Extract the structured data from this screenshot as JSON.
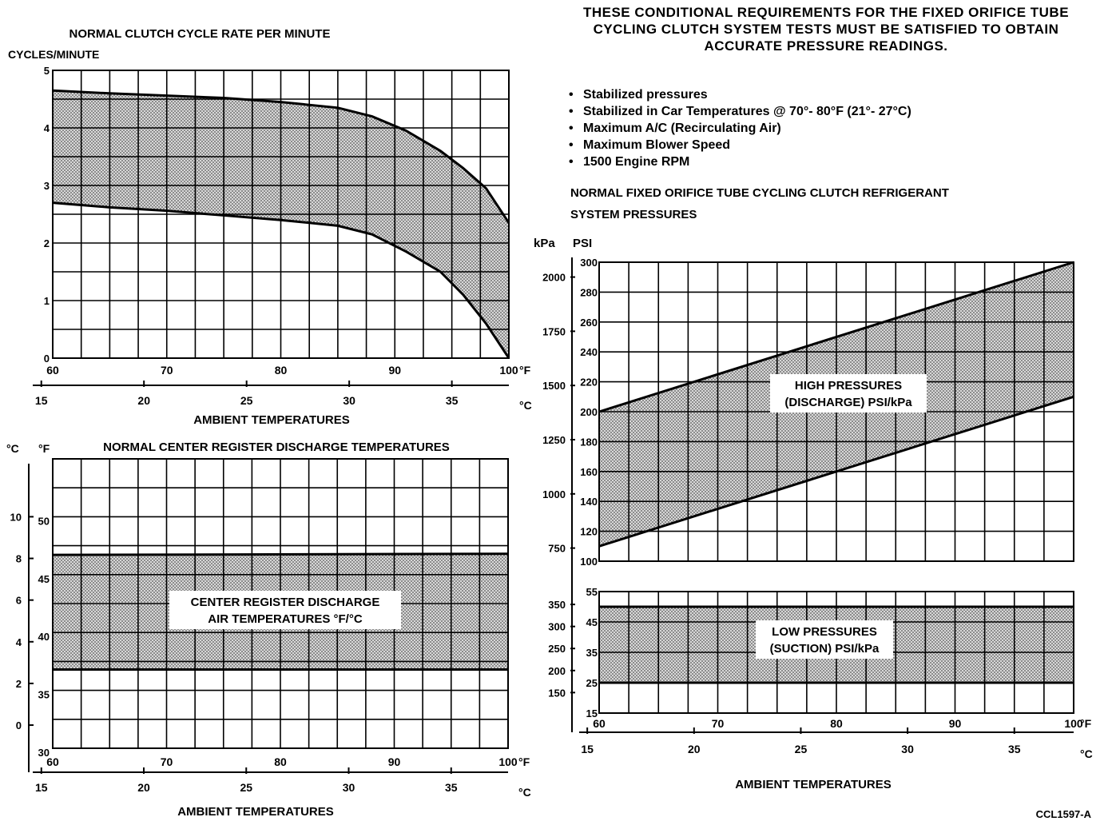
{
  "header": {
    "lines": [
      "THESE CONDITIONAL REQUIREMENTS FOR THE FIXED ORIFICE TUBE",
      "CYCLING CLUTCH SYSTEM TESTS MUST BE SATISFIED TO OBTAIN",
      "ACCURATE PRESSURE READINGS."
    ]
  },
  "conditions": [
    "Stabilized pressures",
    "Stabilized in Car Temperatures @ 70°- 80°F (21°- 27°C)",
    "Maximum A/C (Recirculating Air)",
    "Maximum Blower Speed",
    "1500 Engine RPM"
  ],
  "reference_code": "CCL1597-A",
  "colors": {
    "ink": "#000000",
    "band": "#bdbdbd",
    "paper": "#ffffff"
  },
  "chart_data": [
    {
      "type": "area",
      "title": "NORMAL CLUTCH CYCLE RATE PER MINUTE",
      "ylabel": "CYCLES/MINUTE",
      "xlabel": "AMBIENT TEMPERATURES",
      "x_unit": "°F",
      "x2_unit": "°C",
      "xlim": [
        60,
        100
      ],
      "ylim": [
        0,
        5
      ],
      "x_ticks": [
        "60",
        "70",
        "80",
        "90",
        "100"
      ],
      "x2_ticks": [
        "15",
        "20",
        "25",
        "30",
        "35"
      ],
      "y_ticks": [
        "0",
        "1",
        "2",
        "3",
        "4",
        "5"
      ],
      "grid": true,
      "series": [
        {
          "role": "upper",
          "x": [
            60,
            65,
            70,
            75,
            80,
            85,
            88,
            91,
            94,
            96,
            98,
            100
          ],
          "values": [
            4.65,
            4.6,
            4.56,
            4.52,
            4.45,
            4.35,
            4.2,
            3.95,
            3.6,
            3.3,
            2.95,
            2.35
          ]
        },
        {
          "role": "lower",
          "x": [
            60,
            65,
            70,
            75,
            80,
            85,
            88,
            91,
            94,
            96,
            98,
            100
          ],
          "values": [
            2.7,
            2.62,
            2.56,
            2.48,
            2.4,
            2.3,
            2.15,
            1.85,
            1.5,
            1.1,
            0.6,
            0
          ]
        }
      ]
    },
    {
      "type": "area",
      "title": "NORMAL CENTER REGISTER DISCHARGE TEMPERATURES",
      "band_label": [
        "CENTER REGISTER DISCHARGE",
        "AIR TEMPERATURES °F/°C"
      ],
      "xlabel": "AMBIENT TEMPERATURES",
      "x_unit": "°F",
      "x2_unit": "°C",
      "xlim": [
        60,
        100
      ],
      "ylim": [
        30,
        55
      ],
      "x_ticks": [
        "60",
        "70",
        "80",
        "90",
        "100"
      ],
      "x2_ticks": [
        "15",
        "20",
        "25",
        "30",
        "35"
      ],
      "y_left_unit": "°C",
      "y_right_unit": "°F",
      "y_ticks_f": [
        "30",
        "35",
        "40",
        "45",
        "50"
      ],
      "y_ticks_c": [
        "0",
        "2",
        "4",
        "6",
        "8",
        "10"
      ],
      "grid": true,
      "series": [
        {
          "role": "upper",
          "x": [
            60,
            100
          ],
          "values": [
            46.7,
            46.8
          ]
        },
        {
          "role": "lower",
          "x": [
            60,
            100
          ],
          "values": [
            36.8,
            36.8
          ]
        }
      ]
    },
    {
      "type": "area",
      "title": "NORMAL FIXED ORIFICE TUBE CYCLING CLUTCH REFRIGERANT",
      "title_line2": "SYSTEM PRESSURES",
      "xlabel": "AMBIENT TEMPERATURES",
      "x_unit": "°F",
      "x2_unit": "°C",
      "xlim": [
        60,
        100
      ],
      "x_ticks": [
        "60",
        "70",
        "80",
        "90",
        "100"
      ],
      "x2_ticks": [
        "15",
        "20",
        "25",
        "30",
        "35"
      ],
      "y_left_unit": "kPa",
      "y_right_unit": "PSI",
      "high": {
        "band_label": [
          "HIGH PRESSURES",
          "(DISCHARGE) PSI/kPa"
        ],
        "ylim": [
          100,
          300
        ],
        "psi_ticks": [
          "100",
          "120",
          "140",
          "160",
          "180",
          "200",
          "220",
          "240",
          "260",
          "280",
          "300"
        ],
        "kpa_ticks": [
          "750",
          "1000",
          "1250",
          "1500",
          "1750",
          "2000"
        ],
        "series": [
          {
            "role": "upper",
            "x": [
              60,
              100
            ],
            "values": [
              200,
              300
            ]
          },
          {
            "role": "lower",
            "x": [
              60,
              100
            ],
            "values": [
              110,
              210
            ]
          }
        ]
      },
      "low": {
        "band_label": [
          "LOW PRESSURES",
          "(SUCTION) PSI/kPa"
        ],
        "ylim": [
          15,
          55
        ],
        "psi_ticks": [
          "15",
          "25",
          "35",
          "45",
          "55"
        ],
        "kpa_ticks": [
          "150",
          "200",
          "250",
          "300",
          "350"
        ],
        "series": [
          {
            "role": "upper",
            "x": [
              60,
              100
            ],
            "values": [
              50,
              50
            ]
          },
          {
            "role": "lower",
            "x": [
              60,
              100
            ],
            "values": [
              25,
              25
            ]
          }
        ]
      }
    }
  ]
}
